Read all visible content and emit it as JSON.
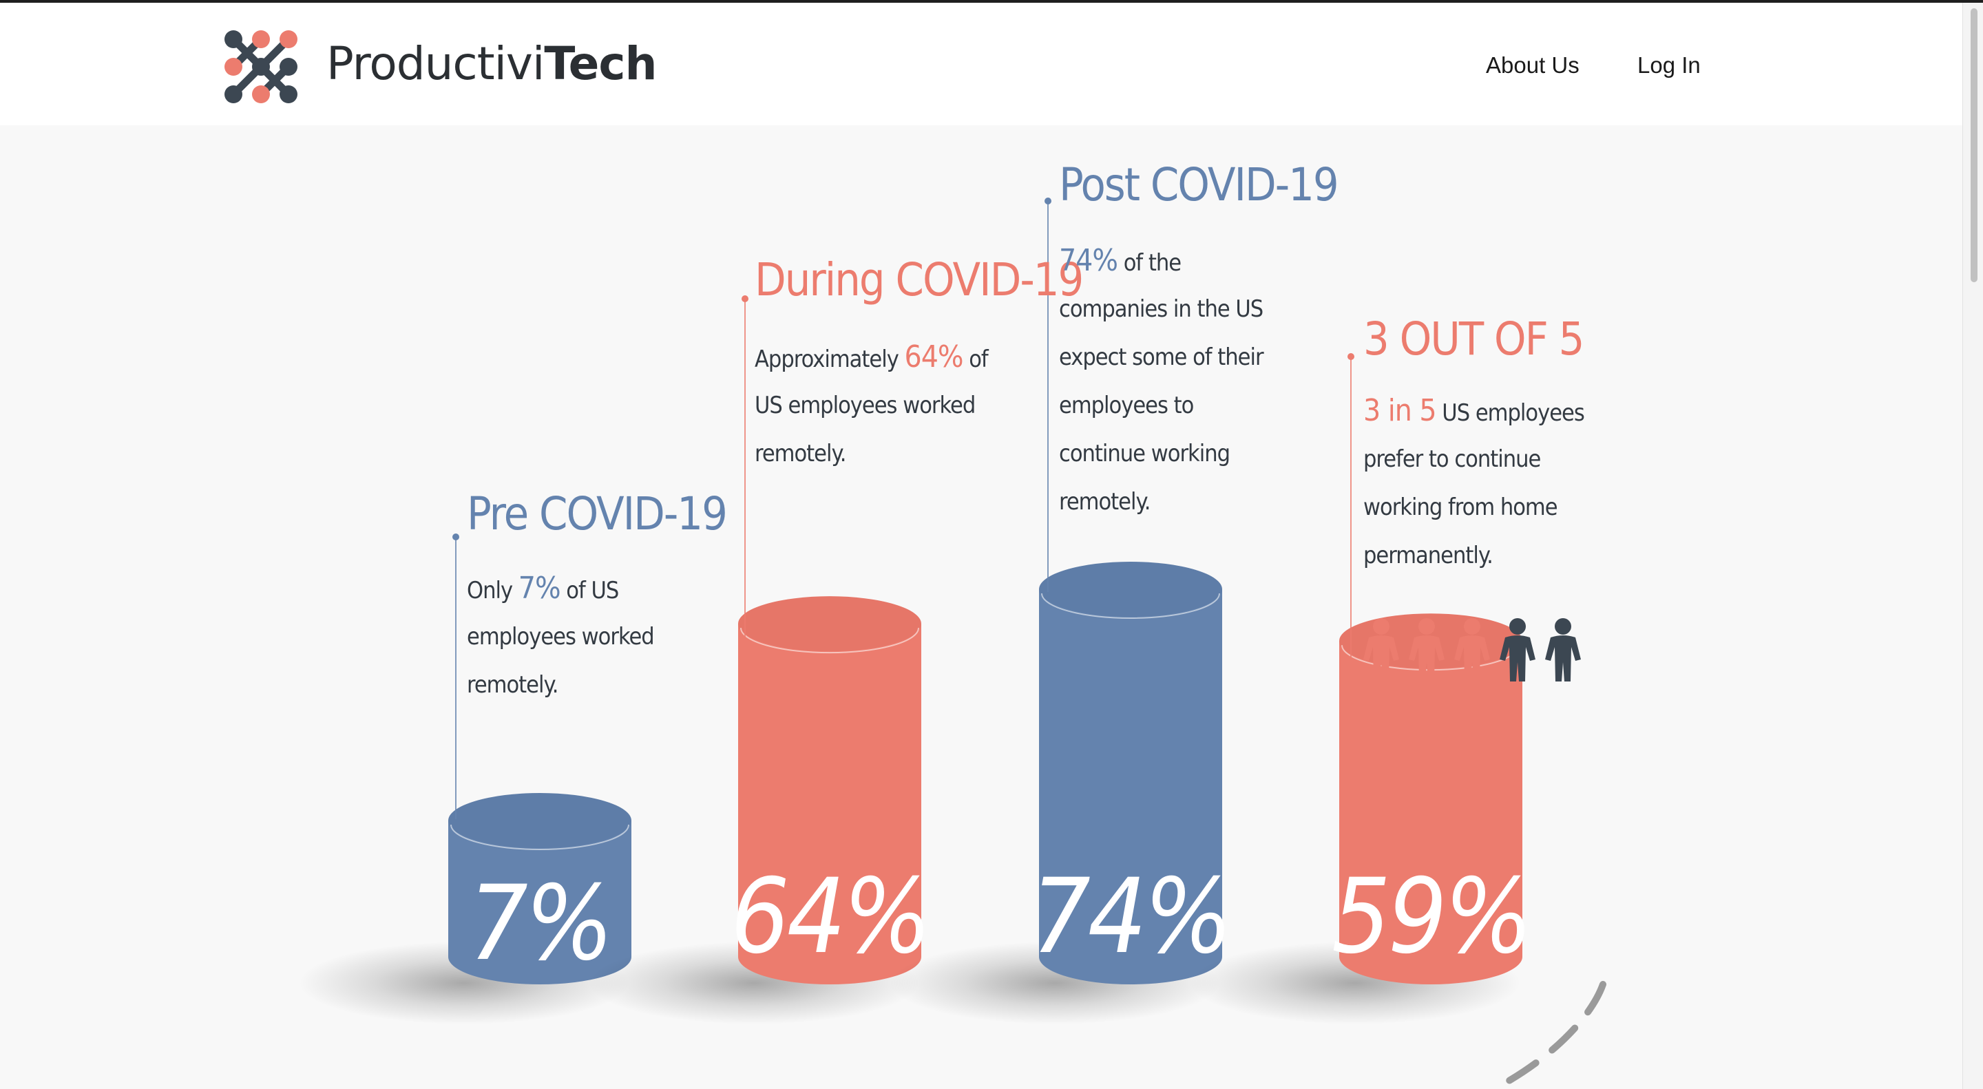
{
  "header": {
    "brand_light": "Productivi",
    "brand_bold": "Tech",
    "nav": [
      "About Us",
      "Log In"
    ]
  },
  "colors": {
    "blue": "#6483ae",
    "coral": "#ec7c6e",
    "dark": "#3c4752",
    "text": "#333a42"
  },
  "chart_data": {
    "type": "bar",
    "categories": [
      "Pre COVID-19",
      "During COVID-19",
      "Post COVID-19",
      "3 OUT OF 5"
    ],
    "values": [
      7,
      64,
      74,
      59
    ],
    "ylim": [
      0,
      100
    ]
  },
  "items": [
    {
      "title": "Pre COVID-19",
      "value_label": "7%",
      "lines": [
        [
          "Only ",
          "7%",
          " of US"
        ],
        [
          "employees worked"
        ],
        [
          "remotely."
        ]
      ],
      "color": "#6483ae"
    },
    {
      "title": "During COVID-19",
      "value_label": "64%",
      "lines": [
        [
          "Approximately  ",
          "64%",
          " of"
        ],
        [
          "US employees worked"
        ],
        [
          "remotely."
        ]
      ],
      "color": "#ec7c6e"
    },
    {
      "title": "Post COVID-19",
      "value_label": "74%",
      "lines": [
        [
          "",
          "74%",
          " of the"
        ],
        [
          "companies in the US"
        ],
        [
          "expect some of their"
        ],
        [
          "employees to"
        ],
        [
          "continue working"
        ],
        [
          "remotely."
        ]
      ],
      "color": "#6483ae"
    },
    {
      "title": "3 OUT OF 5",
      "value_label": "59%",
      "lines": [
        [
          "",
          "3 in 5",
          " US employees"
        ],
        [
          "prefer to continue"
        ],
        [
          "working from home"
        ],
        [
          "permanently."
        ]
      ],
      "color": "#ec7c6e"
    }
  ],
  "people_icons": [
    "person-icon-highlighted",
    "person-icon-highlighted",
    "person-icon-highlighted",
    "person-icon",
    "person-icon"
  ]
}
